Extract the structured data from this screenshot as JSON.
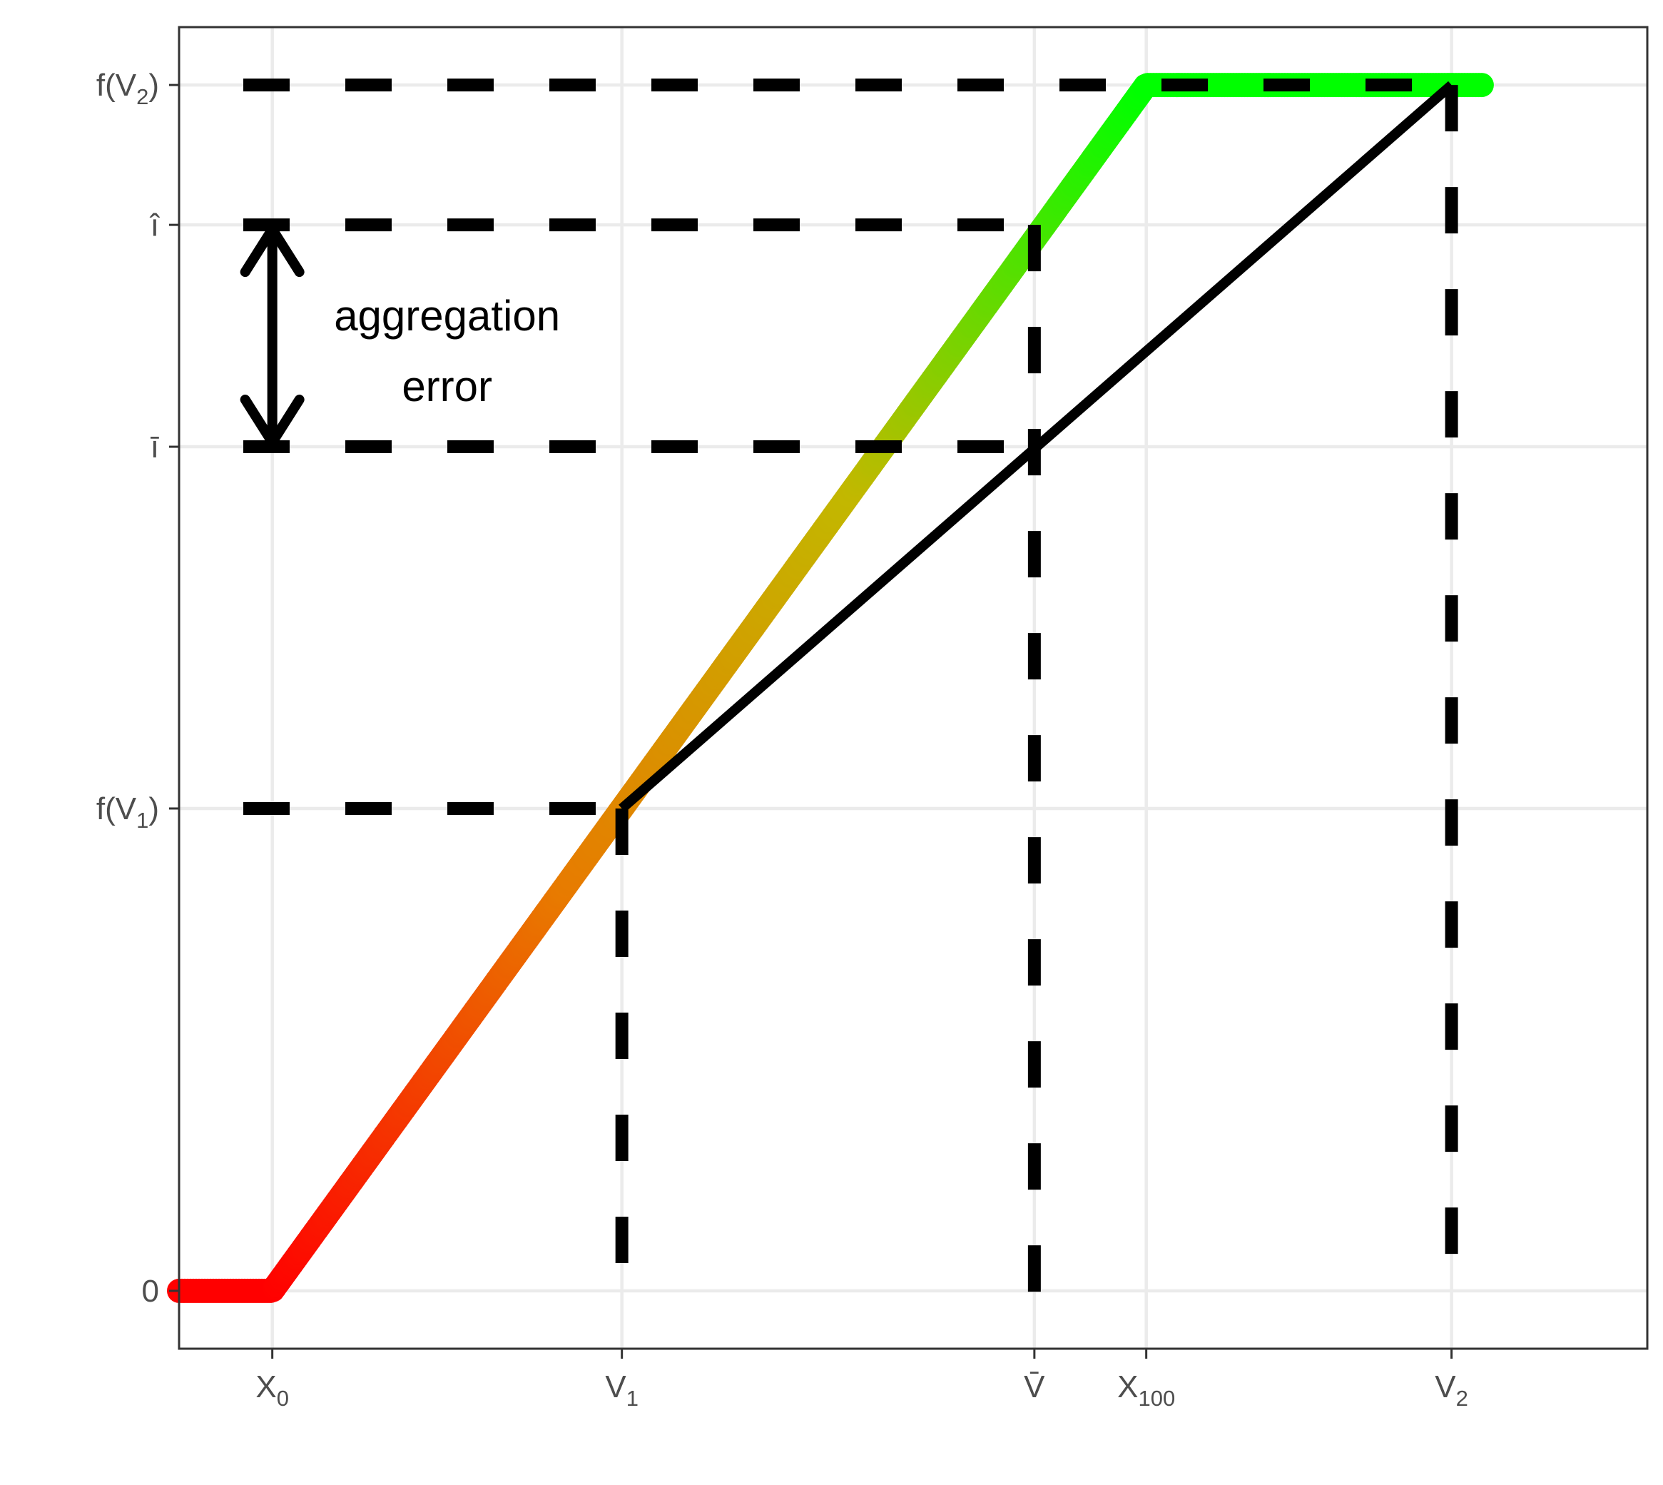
{
  "chart_data": {
    "type": "line",
    "title": "",
    "xlabel": "",
    "ylabel": "",
    "grid": true,
    "xlim": [
      -0.4,
      5.9
    ],
    "ylim": [
      -0.12,
      2.62
    ],
    "x_ticks": [
      {
        "id": "x0",
        "value": 0.0,
        "label": "X",
        "sub": "0"
      },
      {
        "id": "v1",
        "value": 1.5,
        "label": "V",
        "sub": "1"
      },
      {
        "id": "vbar",
        "value": 3.27,
        "label": "V̄",
        "sub": ""
      },
      {
        "id": "x100",
        "value": 3.75,
        "label": "X",
        "sub": "100"
      },
      {
        "id": "v2",
        "value": 5.06,
        "label": "V",
        "sub": "2"
      }
    ],
    "y_ticks": [
      {
        "id": "zero",
        "value": 0.0,
        "label": "0",
        "sub": "",
        "suffix": ""
      },
      {
        "id": "fv1",
        "value": 1.0,
        "label": "f(V",
        "sub": "1",
        "suffix": ")"
      },
      {
        "id": "ibar",
        "value": 1.75,
        "label": "ī",
        "sub": "",
        "suffix": ""
      },
      {
        "id": "ihat",
        "value": 2.21,
        "label": "î",
        "sub": "",
        "suffix": ""
      },
      {
        "id": "fv2",
        "value": 2.5,
        "label": "f(V",
        "sub": "2",
        "suffix": ")"
      }
    ],
    "series": [
      {
        "kind": "gradient-curve",
        "x": [
          -0.4,
          0.0,
          3.75,
          5.2
        ],
        "y": [
          0.0,
          0.0,
          2.5,
          2.5
        ],
        "colors": [
          "#ff0000",
          "#e87a00",
          "#c2b800",
          "#00ff00"
        ]
      },
      {
        "kind": "chord",
        "x": [
          1.5,
          5.06
        ],
        "y": [
          1.0,
          2.5
        ]
      }
    ],
    "guides": {
      "horizontal": [
        {
          "y": 2.5,
          "x_from": -0.4,
          "x_to": 5.06
        },
        {
          "y": 2.21,
          "x_from": -0.4,
          "x_to": 3.27
        },
        {
          "y": 1.75,
          "x_from": -0.4,
          "x_to": 3.27
        },
        {
          "y": 1.0,
          "x_from": -0.4,
          "x_to": 1.5
        }
      ],
      "vertical": [
        {
          "x": 1.5,
          "y_from": 1.0,
          "y_to": -0.05
        },
        {
          "x": 3.27,
          "y_from": 2.21,
          "y_to": -0.02
        },
        {
          "x": 5.06,
          "y_from": 2.5,
          "y_to": 0.05
        }
      ]
    },
    "annotations": {
      "arrow": {
        "x": 0.0,
        "y_from": 1.75,
        "y_to": 2.21
      },
      "text_line1": "aggregation",
      "text_line2": "error",
      "text_x": 0.75
    }
  }
}
